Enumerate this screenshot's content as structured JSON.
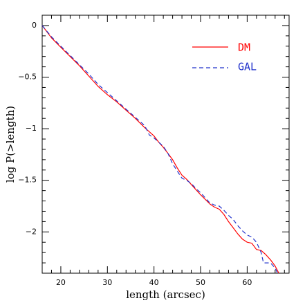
{
  "chart_data": {
    "type": "line",
    "title": "",
    "xlabel": "length (arcsec)",
    "ylabel": "log P(>length)",
    "xlim": [
      16,
      69
    ],
    "ylim": [
      -2.4,
      0.1
    ],
    "x_ticks": [
      20,
      30,
      40,
      50,
      60
    ],
    "x_tick_labels": [
      "20",
      "30",
      "40",
      "50",
      "60"
    ],
    "y_ticks": [
      0,
      -0.5,
      -1,
      -1.5,
      -2
    ],
    "y_tick_labels": [
      "0",
      "−0.5",
      "−1",
      "−1.5",
      "−2"
    ],
    "legend_position": "top-right",
    "grid": false,
    "series": [
      {
        "name": "DM",
        "color": "#ff0000",
        "style": "solid",
        "points": [
          [
            16,
            0
          ],
          [
            18,
            -0.12
          ],
          [
            20,
            -0.21
          ],
          [
            22,
            -0.3
          ],
          [
            24,
            -0.39
          ],
          [
            26,
            -0.49
          ],
          [
            28,
            -0.59
          ],
          [
            30,
            -0.67
          ],
          [
            32,
            -0.74
          ],
          [
            34,
            -0.82
          ],
          [
            36,
            -0.9
          ],
          [
            38,
            -0.99
          ],
          [
            40,
            -1.07
          ],
          [
            41,
            -1.13
          ],
          [
            42,
            -1.18
          ],
          [
            43,
            -1.24
          ],
          [
            44,
            -1.3
          ],
          [
            45,
            -1.38
          ],
          [
            46,
            -1.45
          ],
          [
            47,
            -1.49
          ],
          [
            48,
            -1.54
          ],
          [
            50,
            -1.64
          ],
          [
            52,
            -1.73
          ],
          [
            53,
            -1.76
          ],
          [
            54,
            -1.78
          ],
          [
            55,
            -1.83
          ],
          [
            56,
            -1.9
          ],
          [
            57,
            -1.96
          ],
          [
            58,
            -2.02
          ],
          [
            59,
            -2.07
          ],
          [
            60,
            -2.1
          ],
          [
            61,
            -2.11
          ],
          [
            62,
            -2.17
          ],
          [
            63,
            -2.18
          ],
          [
            64,
            -2.22
          ],
          [
            65,
            -2.27
          ],
          [
            66,
            -2.33
          ],
          [
            66.8,
            -2.4
          ]
        ]
      },
      {
        "name": "GAL",
        "color": "#2233cc",
        "style": "dashed",
        "points": [
          [
            16,
            0
          ],
          [
            18,
            -0.11
          ],
          [
            20,
            -0.2
          ],
          [
            22,
            -0.29
          ],
          [
            24,
            -0.38
          ],
          [
            26,
            -0.47
          ],
          [
            27,
            -0.52
          ],
          [
            28,
            -0.57
          ],
          [
            30,
            -0.65
          ],
          [
            32,
            -0.73
          ],
          [
            34,
            -0.81
          ],
          [
            36,
            -0.89
          ],
          [
            38,
            -0.97
          ],
          [
            39,
            -1.06
          ],
          [
            40,
            -1.09
          ],
          [
            41,
            -1.13
          ],
          [
            42,
            -1.17
          ],
          [
            43,
            -1.24
          ],
          [
            44,
            -1.34
          ],
          [
            45,
            -1.41
          ],
          [
            46,
            -1.48
          ],
          [
            47,
            -1.5
          ],
          [
            48,
            -1.53
          ],
          [
            49,
            -1.58
          ],
          [
            50,
            -1.62
          ],
          [
            52,
            -1.72
          ],
          [
            53,
            -1.74
          ],
          [
            54,
            -1.75
          ],
          [
            55,
            -1.79
          ],
          [
            56,
            -1.84
          ],
          [
            57,
            -1.88
          ],
          [
            58,
            -1.94
          ],
          [
            59,
            -1.99
          ],
          [
            60,
            -2.03
          ],
          [
            61,
            -2.05
          ],
          [
            62,
            -2.1
          ],
          [
            63,
            -2.2
          ],
          [
            63.5,
            -2.3
          ],
          [
            64,
            -2.3
          ],
          [
            65,
            -2.3
          ],
          [
            66,
            -2.35
          ],
          [
            66.5,
            -2.4
          ]
        ]
      }
    ]
  }
}
